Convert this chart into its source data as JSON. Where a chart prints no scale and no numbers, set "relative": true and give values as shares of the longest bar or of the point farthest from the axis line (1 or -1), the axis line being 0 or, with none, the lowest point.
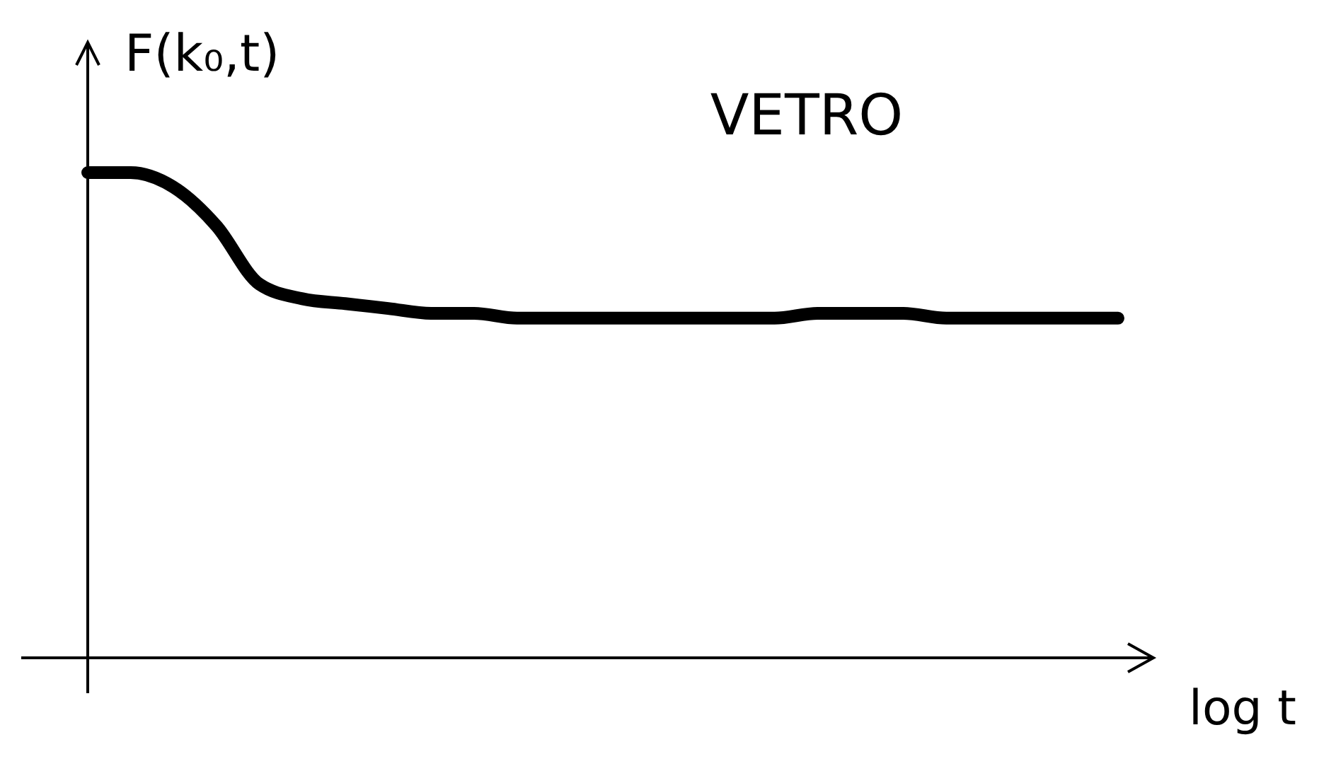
{
  "chart_data": {
    "type": "line",
    "title": "VETRO",
    "ylabel": "F(k₀,t)",
    "xlabel": "log t",
    "relative": true,
    "marker": "none",
    "line_style": "solid",
    "categories": [
      null,
      null,
      null,
      null,
      null,
      null,
      null,
      null,
      null,
      null,
      null,
      null,
      null,
      null,
      null,
      null,
      null,
      null,
      null,
      null,
      null,
      null,
      null,
      null,
      null
    ],
    "series": [
      {
        "color": "#000000",
        "values": [
          1,
          1,
          0.97,
          0.89,
          0.77,
          0.74,
          0.73,
          0.72,
          0.71,
          0.71,
          0.7,
          0.7,
          0.7,
          0.7,
          0.7,
          0.7,
          0.7,
          0.71,
          0.71,
          0.71,
          0.7,
          0.7,
          0.7,
          0.7,
          0.7
        ]
      }
    ]
  }
}
